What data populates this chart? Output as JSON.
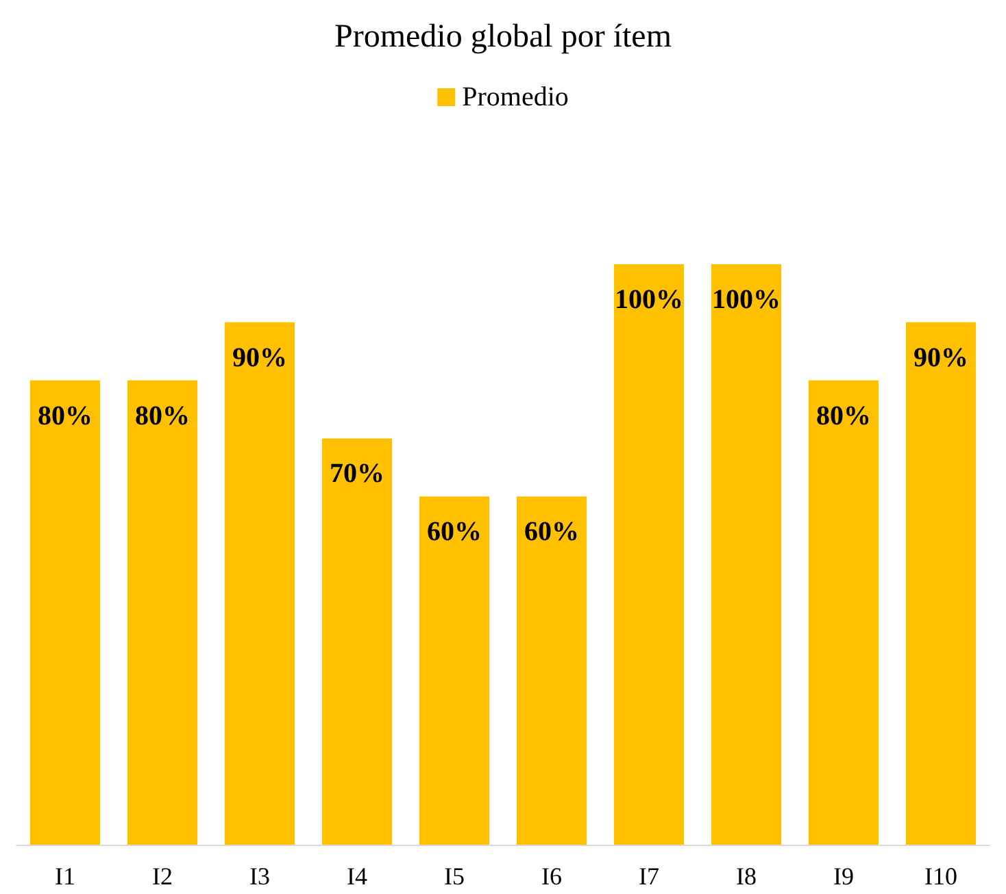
{
  "chart_data": {
    "type": "bar",
    "title": "Promedio global por ítem",
    "categories": [
      "I1",
      "I2",
      "I3",
      "I4",
      "I5",
      "I6",
      "I7",
      "I8",
      "I9",
      "I10"
    ],
    "series": [
      {
        "name": "Promedio",
        "color": "#ffc000",
        "values": [
          80,
          80,
          90,
          70,
          60,
          60,
          100,
          100,
          80,
          90
        ],
        "value_labels": [
          "80%",
          "80%",
          "90%",
          "70%",
          "60%",
          "60%",
          "100%",
          "100%",
          "80%",
          "90%"
        ]
      }
    ],
    "ylim": [
      0,
      100
    ],
    "grid": false,
    "legend": "top"
  }
}
